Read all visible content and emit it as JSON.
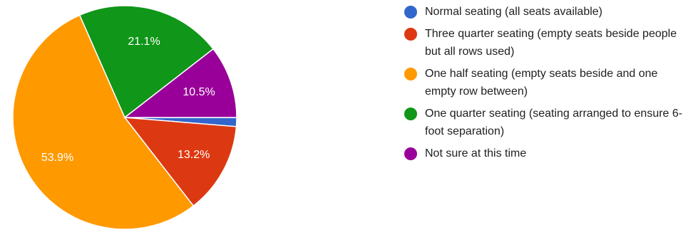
{
  "chart_data": {
    "type": "pie",
    "title": "",
    "slices": [
      {
        "label": "Normal seating (all seats available)",
        "value": 1.3,
        "display": "",
        "color": "#3366cc"
      },
      {
        "label": "Three quarter seating (empty seats beside people but all rows used)",
        "value": 13.2,
        "display": "13.2%",
        "color": "#dc3912"
      },
      {
        "label": "One half seating (empty seats beside and one empty row between)",
        "value": 53.9,
        "display": "53.9%",
        "color": "#ff9900"
      },
      {
        "label": "One quarter seating (seating arranged to ensure 6-foot separation)",
        "value": 21.1,
        "display": "21.1%",
        "color": "#109618"
      },
      {
        "label": "Not sure at this time",
        "value": 10.5,
        "display": "10.5%",
        "color": "#990099"
      }
    ],
    "start": "3 o'clock",
    "direction": "clockwise",
    "legend_position": "right"
  }
}
